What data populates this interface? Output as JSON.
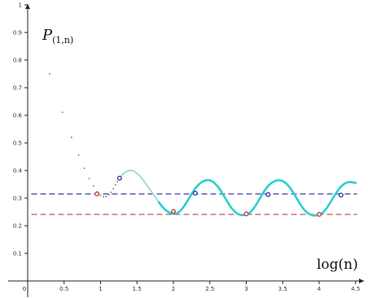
{
  "chart_data": {
    "type": "line",
    "ylabel": "P(1,n)",
    "xlabel": "log(n)",
    "xlim": [
      0,
      4.5
    ],
    "ylim": [
      0,
      1
    ],
    "x_ticks": [
      "0",
      "0.5",
      "1",
      "1.5",
      "2",
      "2.5",
      "3",
      "3.5",
      "4",
      "4.5"
    ],
    "y_ticks": [
      "0.1",
      "0.2",
      "0.3",
      "0.4",
      "0.5",
      "0.6",
      "0.7",
      "0.8",
      "0.9",
      "1"
    ],
    "grid": false,
    "reference_lines": [
      {
        "y": 0.315,
        "color": "#3a3aa0",
        "style": "dashed"
      },
      {
        "y": 0.241,
        "color": "#c04040",
        "style": "dashed"
      }
    ],
    "series": [
      {
        "kind": "dots",
        "color": "#6e6e6e",
        "points": [
          [
            0.301,
            0.75
          ],
          [
            0.477,
            0.611
          ],
          [
            0.602,
            0.52
          ],
          [
            0.699,
            0.456
          ],
          [
            0.778,
            0.408
          ],
          [
            0.845,
            0.371
          ],
          [
            0.903,
            0.344
          ],
          [
            0.954,
            0.323
          ],
          [
            1.0,
            0.31
          ],
          [
            1.041,
            0.305
          ],
          [
            1.079,
            0.306
          ],
          [
            1.114,
            0.312
          ],
          [
            1.146,
            0.321
          ],
          [
            1.176,
            0.334
          ],
          [
            1.204,
            0.348
          ],
          [
            1.23,
            0.36
          ]
        ]
      },
      {
        "kind": "curve-faint",
        "color": "#9fd6d4",
        "points": [
          [
            1.26,
            0.372
          ],
          [
            1.3,
            0.385
          ],
          [
            1.35,
            0.396
          ],
          [
            1.4,
            0.401
          ],
          [
            1.45,
            0.399
          ],
          [
            1.5,
            0.39
          ],
          [
            1.55,
            0.377
          ],
          [
            1.6,
            0.36
          ],
          [
            1.65,
            0.342
          ],
          [
            1.7,
            0.323
          ],
          [
            1.75,
            0.304
          ],
          [
            1.8,
            0.285
          ]
        ]
      },
      {
        "kind": "curve",
        "color": "#2ccfcf",
        "points": [
          [
            1.8,
            0.285
          ],
          [
            1.85,
            0.268
          ],
          [
            1.9,
            0.255
          ],
          [
            1.95,
            0.247
          ],
          [
            2.0,
            0.243
          ],
          [
            2.05,
            0.245
          ],
          [
            2.1,
            0.255
          ],
          [
            2.15,
            0.272
          ],
          [
            2.2,
            0.293
          ],
          [
            2.25,
            0.315
          ],
          [
            2.3,
            0.335
          ],
          [
            2.35,
            0.35
          ],
          [
            2.4,
            0.36
          ],
          [
            2.45,
            0.365
          ],
          [
            2.5,
            0.365
          ],
          [
            2.55,
            0.358
          ],
          [
            2.6,
            0.345
          ],
          [
            2.65,
            0.327
          ],
          [
            2.7,
            0.305
          ],
          [
            2.75,
            0.283
          ],
          [
            2.8,
            0.263
          ],
          [
            2.85,
            0.249
          ],
          [
            2.9,
            0.241
          ],
          [
            2.95,
            0.238
          ],
          [
            3.0,
            0.24
          ],
          [
            3.05,
            0.247
          ],
          [
            3.1,
            0.262
          ],
          [
            3.15,
            0.282
          ],
          [
            3.2,
            0.305
          ],
          [
            3.25,
            0.327
          ],
          [
            3.3,
            0.344
          ],
          [
            3.35,
            0.356
          ],
          [
            3.4,
            0.363
          ],
          [
            3.45,
            0.365
          ],
          [
            3.5,
            0.362
          ],
          [
            3.55,
            0.353
          ],
          [
            3.6,
            0.338
          ],
          [
            3.65,
            0.318
          ],
          [
            3.7,
            0.296
          ],
          [
            3.75,
            0.274
          ],
          [
            3.8,
            0.256
          ],
          [
            3.85,
            0.244
          ],
          [
            3.9,
            0.238
          ],
          [
            3.95,
            0.237
          ],
          [
            4.0,
            0.239
          ],
          [
            4.05,
            0.247
          ],
          [
            4.1,
            0.262
          ],
          [
            4.15,
            0.283
          ],
          [
            4.2,
            0.305
          ],
          [
            4.25,
            0.325
          ],
          [
            4.3,
            0.342
          ],
          [
            4.35,
            0.353
          ],
          [
            4.4,
            0.358
          ],
          [
            4.45,
            0.358
          ],
          [
            4.5,
            0.355
          ]
        ]
      }
    ],
    "markers": [
      {
        "x": 0.95,
        "y": 0.315,
        "color": "#c04040"
      },
      {
        "x": 1.26,
        "y": 0.372,
        "color": "#3a3aa0"
      },
      {
        "x": 2.0,
        "y": 0.252,
        "color": "#c04040"
      },
      {
        "x": 2.3,
        "y": 0.318,
        "color": "#3a3aa0"
      },
      {
        "x": 3.0,
        "y": 0.243,
        "color": "#c04040"
      },
      {
        "x": 3.3,
        "y": 0.313,
        "color": "#3a3aa0"
      },
      {
        "x": 4.0,
        "y": 0.241,
        "color": "#c04040"
      },
      {
        "x": 4.3,
        "y": 0.311,
        "color": "#3a3aa0"
      }
    ]
  }
}
